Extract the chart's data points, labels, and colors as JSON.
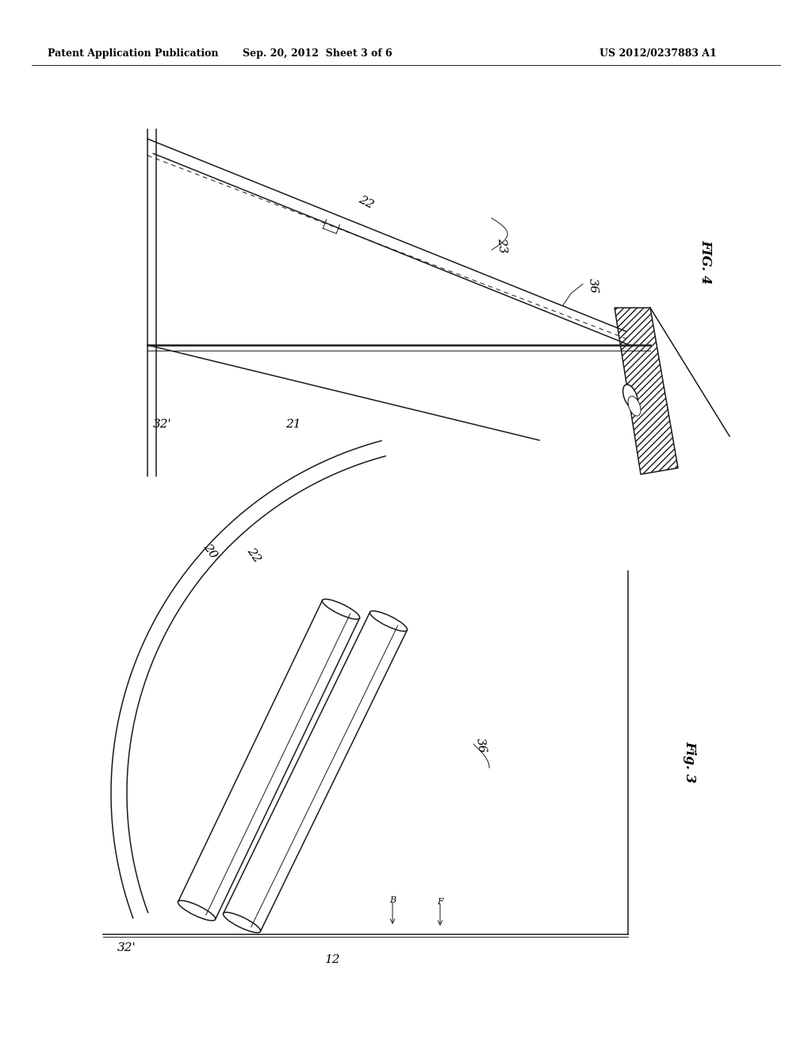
{
  "bg_color": "#ffffff",
  "line_color": "#1a1a1a",
  "header_left": "Patent Application Publication",
  "header_mid": "Sep. 20, 2012  Sheet 3 of 6",
  "header_right": "US 2012/0237883 A1",
  "fig4_label": "FIG. 4",
  "fig3_label": "Fig. 3",
  "labels": {
    "22_fig4": "22",
    "23_fig4": "23",
    "36_fig4": "36",
    "32p_fig4": "32'",
    "21_fig4": "21",
    "20_fig3": "20",
    "22_fig3": "22",
    "36_fig3": "36",
    "B_fig3": "B",
    "F_fig3": "F",
    "32p_fig3": "32'",
    "12_fig3": "12"
  }
}
